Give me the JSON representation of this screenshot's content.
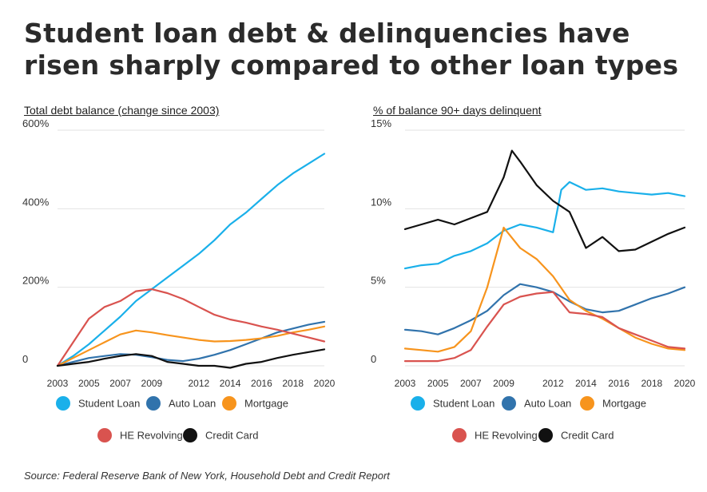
{
  "title": "Student loan debt & delinquencies have risen sharply compared to other loan types",
  "source": "Source: Federal Reserve Bank of New York, Household Debt and Credit Report",
  "colors": {
    "student_loan": "#1ab0ea",
    "auto_loan": "#3173ac",
    "mortgage": "#f7941d",
    "he_revolving": "#d9534f",
    "credit_card": "#111111"
  },
  "chart_data": [
    {
      "type": "line",
      "title": "Total debt balance (change since 2003)",
      "xlim": [
        2003,
        2020
      ],
      "ylim": [
        0,
        600
      ],
      "yticks": [
        0,
        200,
        400,
        600
      ],
      "ytick_labels": [
        "0",
        "200%",
        "400%",
        "600%"
      ],
      "xticks": [
        2003,
        2005,
        2007,
        2009,
        2012,
        2014,
        2016,
        2018,
        2020
      ],
      "legend": "bottom",
      "series": [
        {
          "name": "Student Loan",
          "color": "#1ab0ea",
          "x": [
            2003,
            2004,
            2005,
            2006,
            2007,
            2008,
            2009,
            2010,
            2011,
            2012,
            2013,
            2014,
            2015,
            2016,
            2017,
            2018,
            2019,
            2020
          ],
          "y": [
            0,
            25,
            55,
            90,
            125,
            165,
            195,
            225,
            255,
            285,
            320,
            360,
            390,
            425,
            460,
            490,
            515,
            540
          ]
        },
        {
          "name": "Auto Loan",
          "color": "#3173ac",
          "x": [
            2003,
            2004,
            2005,
            2006,
            2007,
            2008,
            2009,
            2010,
            2011,
            2012,
            2013,
            2014,
            2015,
            2016,
            2017,
            2018,
            2019,
            2020
          ],
          "y": [
            0,
            10,
            20,
            25,
            30,
            28,
            22,
            15,
            12,
            18,
            28,
            40,
            55,
            70,
            85,
            95,
            105,
            112
          ]
        },
        {
          "name": "Mortgage",
          "color": "#f7941d",
          "x": [
            2003,
            2004,
            2005,
            2006,
            2007,
            2008,
            2009,
            2010,
            2011,
            2012,
            2013,
            2014,
            2015,
            2016,
            2017,
            2018,
            2019,
            2020
          ],
          "y": [
            0,
            20,
            40,
            60,
            80,
            90,
            85,
            78,
            72,
            66,
            62,
            63,
            66,
            70,
            76,
            85,
            92,
            100
          ]
        },
        {
          "name": "HE Revolving",
          "color": "#d9534f",
          "x": [
            2003,
            2004,
            2005,
            2006,
            2007,
            2008,
            2009,
            2010,
            2011,
            2012,
            2013,
            2014,
            2015,
            2016,
            2017,
            2018,
            2019,
            2020
          ],
          "y": [
            0,
            60,
            120,
            150,
            165,
            190,
            195,
            185,
            170,
            150,
            130,
            118,
            110,
            100,
            92,
            82,
            72,
            62
          ]
        },
        {
          "name": "Credit Card",
          "color": "#111111",
          "x": [
            2003,
            2004,
            2005,
            2006,
            2007,
            2008,
            2009,
            2010,
            2011,
            2012,
            2013,
            2014,
            2015,
            2016,
            2017,
            2018,
            2019,
            2020
          ],
          "y": [
            0,
            5,
            10,
            18,
            25,
            30,
            25,
            10,
            5,
            0,
            0,
            -5,
            5,
            10,
            20,
            28,
            35,
            42
          ]
        }
      ]
    },
    {
      "type": "line",
      "title": "% of balance 90+ days delinquent",
      "xlim": [
        2003,
        2020
      ],
      "ylim": [
        0,
        15
      ],
      "yticks": [
        0,
        5,
        10,
        15
      ],
      "ytick_labels": [
        "0",
        "5%",
        "10%",
        "15%"
      ],
      "xticks": [
        2003,
        2005,
        2007,
        2009,
        2012,
        2014,
        2016,
        2018,
        2020
      ],
      "legend": "bottom",
      "series": [
        {
          "name": "Student Loan",
          "color": "#1ab0ea",
          "x": [
            2003,
            2004,
            2005,
            2006,
            2007,
            2008,
            2009,
            2010,
            2011,
            2012,
            2012.5,
            2013,
            2014,
            2015,
            2016,
            2017,
            2018,
            2019,
            2020
          ],
          "y": [
            6.2,
            6.4,
            6.5,
            7.0,
            7.3,
            7.8,
            8.6,
            9.0,
            8.8,
            8.5,
            11.2,
            11.7,
            11.2,
            11.3,
            11.1,
            11.0,
            10.9,
            11.0,
            10.8
          ]
        },
        {
          "name": "Auto Loan",
          "color": "#3173ac",
          "x": [
            2003,
            2004,
            2005,
            2006,
            2007,
            2008,
            2009,
            2010,
            2011,
            2012,
            2013,
            2014,
            2015,
            2016,
            2017,
            2018,
            2019,
            2020
          ],
          "y": [
            2.3,
            2.2,
            2.0,
            2.4,
            2.9,
            3.5,
            4.5,
            5.2,
            5.0,
            4.7,
            4.1,
            3.6,
            3.4,
            3.5,
            3.9,
            4.3,
            4.6,
            5.0
          ]
        },
        {
          "name": "Mortgage",
          "color": "#f7941d",
          "x": [
            2003,
            2004,
            2005,
            2006,
            2007,
            2008,
            2009,
            2010,
            2011,
            2012,
            2013,
            2014,
            2015,
            2016,
            2017,
            2018,
            2019,
            2020
          ],
          "y": [
            1.1,
            1.0,
            0.9,
            1.2,
            2.2,
            5.0,
            8.8,
            7.5,
            6.8,
            5.7,
            4.2,
            3.5,
            3.0,
            2.4,
            1.8,
            1.4,
            1.1,
            1.0
          ]
        },
        {
          "name": "HE Revolving",
          "color": "#d9534f",
          "x": [
            2003,
            2004,
            2005,
            2006,
            2007,
            2008,
            2009,
            2010,
            2011,
            2012,
            2013,
            2014,
            2015,
            2016,
            2017,
            2018,
            2019,
            2020
          ],
          "y": [
            0.3,
            0.3,
            0.3,
            0.5,
            1.0,
            2.5,
            3.9,
            4.4,
            4.6,
            4.7,
            3.4,
            3.3,
            3.1,
            2.4,
            2.0,
            1.6,
            1.2,
            1.1
          ]
        },
        {
          "name": "Credit Card",
          "color": "#111111",
          "x": [
            2003,
            2004,
            2005,
            2006,
            2007,
            2008,
            2009,
            2009.5,
            2010,
            2011,
            2012,
            2013,
            2014,
            2015,
            2016,
            2017,
            2018,
            2019,
            2020
          ],
          "y": [
            8.7,
            9.0,
            9.3,
            9.0,
            9.4,
            9.8,
            12.0,
            13.7,
            13.0,
            11.5,
            10.5,
            9.8,
            7.5,
            8.2,
            7.3,
            7.4,
            7.9,
            8.4,
            8.8
          ]
        }
      ]
    }
  ]
}
